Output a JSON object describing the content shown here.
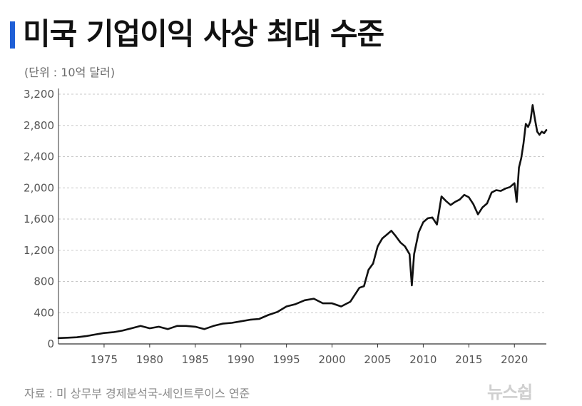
{
  "header": {
    "title": "미국 기업이익 사상 최대 수준",
    "unit_label": "(단위 : 10억 달러)"
  },
  "footer": {
    "source": "자료 : 미 상무부 경제분석국-세인트루이스 연준",
    "logo_text": "뉴스쉽"
  },
  "colors": {
    "accent": "#1f5fd6",
    "line": "#111111",
    "grid": "#c8c8c8"
  },
  "chart_data": {
    "type": "line",
    "title": "미국 기업이익 사상 최대 수준",
    "ylabel": "(단위 : 10억 달러)",
    "xlabel": "",
    "xlim": [
      1970,
      2023.5
    ],
    "ylim": [
      0,
      3200
    ],
    "y_ticks": [
      0,
      400,
      800,
      1200,
      1600,
      2000,
      2400,
      2800,
      3200
    ],
    "y_tick_labels": [
      "0",
      "400",
      "800",
      "1,200",
      "1,600",
      "2,000",
      "2,400",
      "2,800",
      "3,200"
    ],
    "x_ticks": [
      1975,
      1980,
      1985,
      1990,
      1995,
      2000,
      2005,
      2010,
      2015,
      2020
    ],
    "x_tick_labels": [
      "1975",
      "1980",
      "1985",
      "1990",
      "1995",
      "2000",
      "2005",
      "2010",
      "2015",
      "2020"
    ],
    "grid": "horizontal-dashed",
    "series": [
      {
        "x": [
          1970,
          1971,
          1972,
          1973,
          1974,
          1975,
          1976,
          1977,
          1978,
          1979,
          1980,
          1981,
          1982,
          1983,
          1984,
          1985,
          1986,
          1987,
          1988,
          1989,
          1990,
          1991,
          1992,
          1993,
          1994,
          1995,
          1996,
          1997,
          1998,
          1999,
          2000,
          2001,
          2002,
          2003,
          2003.5,
          2004,
          2004.5,
          2005,
          2005.5,
          2006,
          2006.5,
          2007,
          2007.5,
          2008,
          2008.5,
          2008.75,
          2009,
          2009.5,
          2010,
          2010.5,
          2011,
          2011.5,
          2012,
          2012.5,
          2013,
          2013.5,
          2014,
          2014.5,
          2015,
          2015.5,
          2016,
          2016.5,
          2017,
          2017.5,
          2018,
          2018.5,
          2019,
          2019.5,
          2020,
          2020.25,
          2020.5,
          2020.75,
          2021,
          2021.25,
          2021.5,
          2021.75,
          2022,
          2022.25,
          2022.5,
          2022.75,
          2023,
          2023.25,
          2023.5
        ],
        "values": [
          75,
          80,
          85,
          100,
          120,
          140,
          150,
          170,
          200,
          230,
          200,
          220,
          190,
          230,
          230,
          220,
          190,
          230,
          260,
          270,
          290,
          310,
          320,
          370,
          410,
          480,
          510,
          560,
          580,
          520,
          520,
          480,
          540,
          720,
          740,
          950,
          1030,
          1250,
          1350,
          1400,
          1450,
          1380,
          1300,
          1250,
          1150,
          750,
          1150,
          1430,
          1560,
          1610,
          1620,
          1530,
          1890,
          1830,
          1780,
          1820,
          1850,
          1910,
          1880,
          1790,
          1660,
          1750,
          1800,
          1940,
          1970,
          1960,
          1990,
          2010,
          2060,
          1820,
          2260,
          2380,
          2570,
          2820,
          2780,
          2850,
          3060,
          2880,
          2720,
          2680,
          2720,
          2700,
          2740
        ]
      }
    ]
  }
}
